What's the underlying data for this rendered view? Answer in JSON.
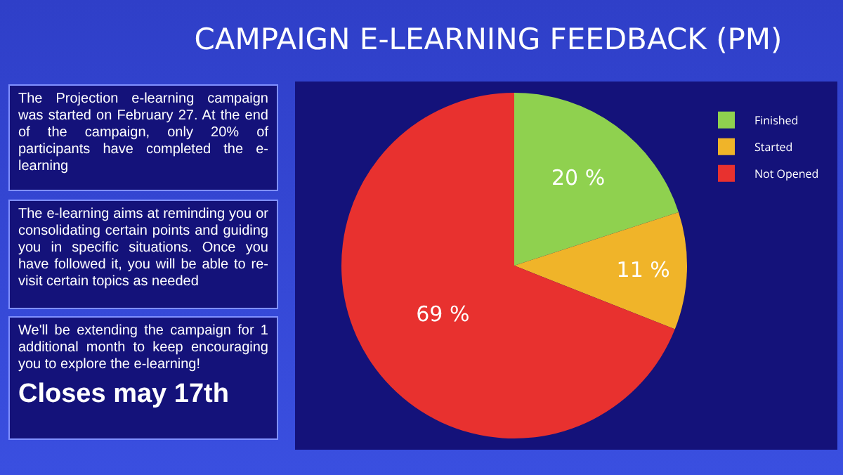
{
  "chart_data": {
    "type": "pie",
    "title": "CAMPAIGN E-LEARNING FEEDBACK (PM)",
    "categories": [
      "Finished",
      "Started",
      "Not Opened"
    ],
    "values": [
      20,
      11,
      69
    ],
    "colors": [
      "#8fd14f",
      "#f0b429",
      "#e8312f"
    ],
    "value_labels": [
      "20 %",
      "11 %",
      "69 %"
    ],
    "legend": "top right",
    "annotations": [
      "The Projection e-learning campaign was started on February 27. At the end of the campaign, only 20% of participants have completed the e-learning",
      "The e-learning aims at reminding you or consolidating certain points and guiding you in specific situations. Once you have followed it, you will be able to re-visit certain topics as needed",
      "We'll be extending the campaign for 1 additional month to keep encouraging you to explore the e-learning!",
      "Closes may 17th"
    ]
  }
}
